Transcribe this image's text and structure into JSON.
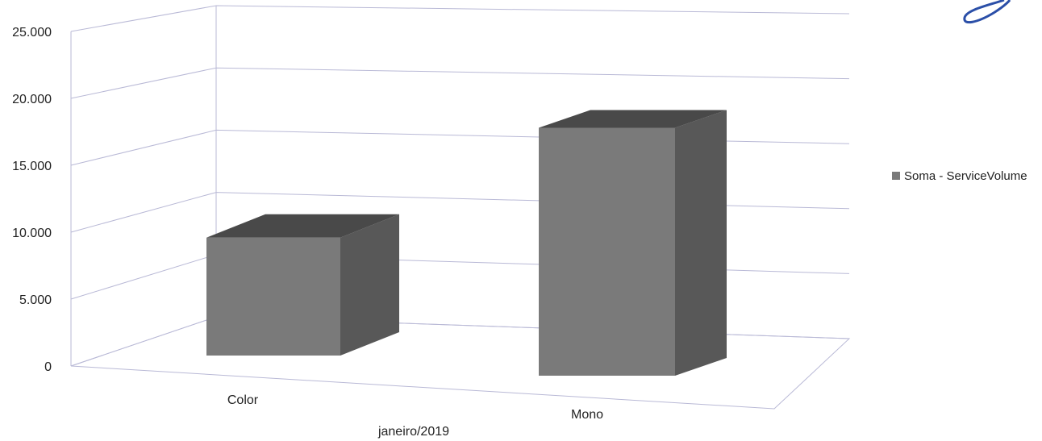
{
  "chart_data": {
    "type": "bar",
    "style": "3d",
    "categories": [
      "Color",
      "Mono"
    ],
    "x_group_label": "janeiro/2019",
    "series": [
      {
        "name": "Soma - ServiceVolume",
        "values": [
          9500,
          19500
        ],
        "color": "#7a7a7a"
      }
    ],
    "ylim": [
      0,
      25000
    ],
    "yticks": [
      0,
      5000,
      10000,
      15000,
      20000,
      25000
    ],
    "ytick_labels": [
      "0",
      "5.000",
      "10.000",
      "15.000",
      "20.000",
      "25.000"
    ],
    "grid": true,
    "legend_position": "right"
  }
}
